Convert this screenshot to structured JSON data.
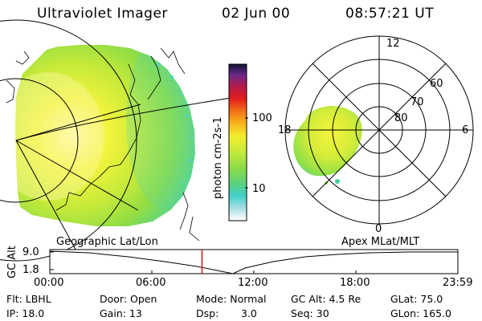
{
  "header": {
    "title": "Ultraviolet Imager",
    "date": "02 Jun 00",
    "time": "08:57:21 UT"
  },
  "colorbar": {
    "label": "photon cm-2s-1",
    "ticks": [
      "100",
      "10"
    ]
  },
  "polar_plot": {
    "hour_labels": {
      "top": "12",
      "left": "18",
      "right": "6",
      "bottom": "0"
    },
    "lat_labels": [
      "60",
      "70",
      "80"
    ]
  },
  "timeline": {
    "left_caption": "Geographic Lat/Lon",
    "right_caption": "Apex MLat/MLT",
    "axis_title": "GC Alt",
    "y_ticks": [
      "9.0",
      "1.8"
    ],
    "x_ticks": [
      "00:00",
      "06:00",
      "12:00",
      "18:00",
      "23:59"
    ],
    "marker_fraction": 0.373
  },
  "footer": {
    "filter": "Flt: LBHL",
    "ip": "IP: 18.0",
    "door": "Door: Open",
    "gain": "Gain: 13",
    "mode": "Mode: Normal",
    "dsp_label": "Dsp:",
    "dsp_value": "3.0",
    "gc_alt": "GC Alt: 4.5 Re",
    "seq": "Seq: 30",
    "glat": "GLat: 75.0",
    "glon": "GLon: 165.0"
  },
  "colors": {
    "accent_marker": "#dd1111",
    "image_core": "#f0f43a",
    "image_mid": "#a9e03a",
    "image_edge": "#4fd39a"
  }
}
